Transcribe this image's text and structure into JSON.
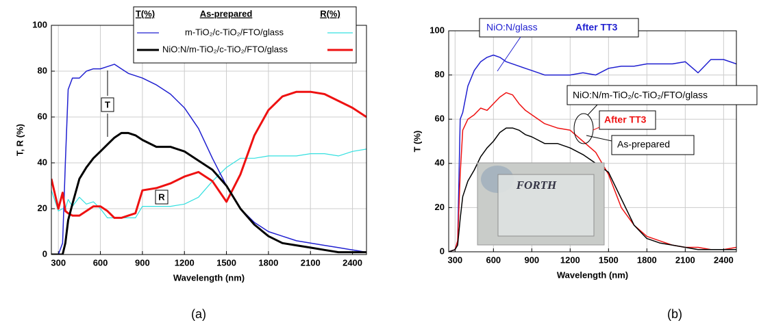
{
  "chart_data": [
    {
      "type": "line",
      "panel": "(a)",
      "xlabel": "Wavelength  (nm)",
      "ylabel": "T, R  (%)",
      "xlim": [
        250,
        2500
      ],
      "xticks": [
        300,
        600,
        900,
        1200,
        1500,
        1800,
        2100,
        2400
      ],
      "ylim": [
        0,
        100
      ],
      "yticks": [
        0,
        20,
        40,
        60,
        80,
        100
      ],
      "grid": true,
      "legend_header": [
        "T(%)",
        "As-prepared",
        "R(%)"
      ],
      "annotations": [
        {
          "text": "T",
          "color": "#000000"
        },
        {
          "text": "R",
          "color": "#000000"
        }
      ],
      "x": [
        250,
        300,
        330,
        350,
        370,
        400,
        450,
        500,
        550,
        600,
        650,
        700,
        750,
        800,
        850,
        900,
        1000,
        1100,
        1200,
        1300,
        1400,
        1500,
        1600,
        1700,
        1800,
        1900,
        2000,
        2100,
        2200,
        2300,
        2400,
        2500
      ],
      "series": [
        {
          "name": "m-TiO₂/c-TiO₂/FTO/glass",
          "color": "#1f1fd0",
          "values": [
            0,
            0,
            5,
            40,
            72,
            77,
            77,
            80,
            81,
            81,
            82,
            83,
            81,
            79,
            78,
            77,
            74,
            70,
            64,
            55,
            42,
            30,
            20,
            14,
            10,
            8,
            6,
            5,
            4,
            3,
            2,
            1
          ],
          "reflectance": {
            "color": "#33e0e0",
            "values": [
              28,
              19,
              20,
              20,
              24,
              21,
              25,
              22,
              23,
              20,
              16,
              16,
              16,
              16,
              16,
              21,
              21,
              21,
              22,
              25,
              32,
              38,
              42,
              42,
              43,
              43,
              43,
              44,
              44,
              43,
              45,
              46
            ]
          }
        },
        {
          "name": "NiO:N/m-TiO₂/c-TiO₂/FTO/glass",
          "color": "#000000",
          "values": [
            0,
            0,
            0,
            5,
            15,
            22,
            33,
            38,
            42,
            45,
            48,
            51,
            53,
            53,
            52,
            50,
            47,
            47,
            45,
            41,
            37,
            30,
            20,
            13,
            8,
            5,
            4,
            3,
            2,
            1,
            1,
            1
          ],
          "reflectance": {
            "color": "#ee1111",
            "values": [
              33,
              20,
              27,
              19,
              18,
              17,
              17,
              19,
              21,
              21,
              19,
              16,
              16,
              17,
              18,
              28,
              29,
              31,
              34,
              36,
              32,
              23,
              35,
              52,
              63,
              69,
              71,
              71,
              70,
              67,
              64,
              60
            ]
          }
        }
      ]
    },
    {
      "type": "line",
      "panel": "(b)",
      "xlabel": "Wavelength (nm)",
      "ylabel": "T (%)",
      "xlim": [
        250,
        2500
      ],
      "xticks": [
        300,
        600,
        900,
        1200,
        1500,
        1800,
        2100,
        2400
      ],
      "ylim": [
        0,
        100
      ],
      "yticks": [
        0,
        20,
        40,
        60,
        80,
        100
      ],
      "grid": true,
      "annotations": [
        {
          "text": "NiO:N/glass",
          "color": "#1f1fd0"
        },
        {
          "text": "After TT3",
          "color": "#1f1fd0"
        },
        {
          "text": "NiO:N/m-TiO₂/c-TiO₂/FTO/glass",
          "color": "#000000"
        },
        {
          "text": "After TT3",
          "color": "#ee1111"
        },
        {
          "text": "As-prepared",
          "color": "#000000"
        }
      ],
      "inset_text": "FORTH",
      "x": [
        250,
        300,
        320,
        340,
        360,
        400,
        450,
        500,
        550,
        600,
        650,
        700,
        750,
        800,
        850,
        900,
        1000,
        1100,
        1200,
        1300,
        1400,
        1500,
        1600,
        1700,
        1800,
        1900,
        2000,
        2100,
        2200,
        2300,
        2400,
        2500
      ],
      "series": [
        {
          "color": "#1f1fd0",
          "values": [
            0,
            1,
            5,
            60,
            63,
            75,
            82,
            86,
            88,
            89,
            88,
            86,
            85,
            84,
            83,
            82,
            80,
            80,
            80,
            81,
            80,
            83,
            84,
            84,
            85,
            85,
            85,
            86,
            81,
            87,
            87,
            85
          ]
        },
        {
          "color": "#ee1111",
          "values": [
            0,
            1,
            5,
            35,
            55,
            60,
            62,
            65,
            64,
            67,
            70,
            72,
            71,
            67,
            64,
            62,
            58,
            56,
            55,
            50,
            45,
            35,
            20,
            12,
            7,
            5,
            3,
            2,
            2,
            1,
            1,
            2
          ]
        },
        {
          "color": "#000000",
          "values": [
            0,
            1,
            3,
            15,
            25,
            32,
            37,
            43,
            47,
            50,
            54,
            56,
            56,
            55,
            53,
            52,
            49,
            49,
            47,
            44,
            40,
            36,
            24,
            12,
            6,
            4,
            3,
            2,
            1,
            1,
            1,
            1
          ]
        }
      ]
    }
  ]
}
